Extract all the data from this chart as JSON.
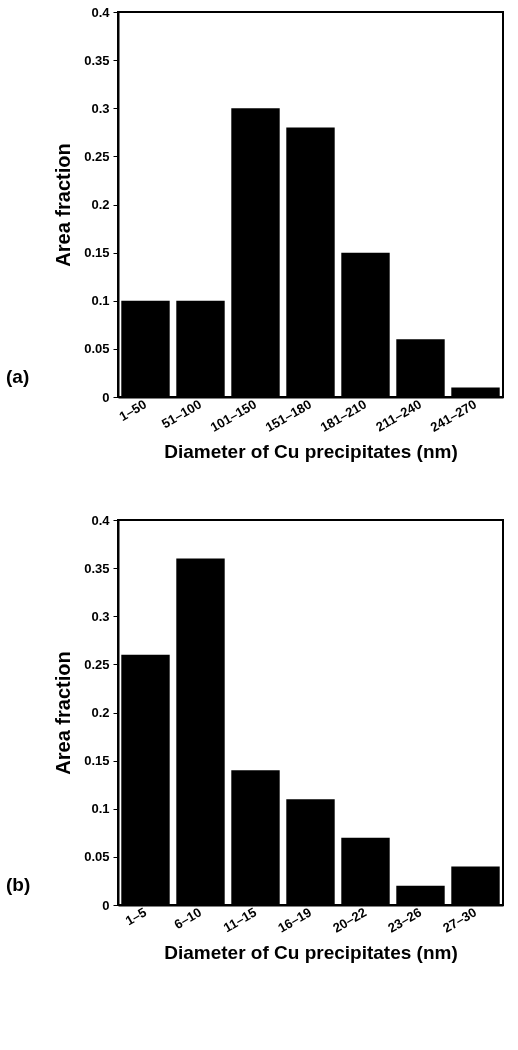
{
  "chart_data": [
    {
      "type": "bar",
      "xlabel": "Diameter of Cu precipitates (nm)",
      "ylabel": "Area fraction",
      "annotations": [
        "(a)"
      ],
      "categories": [
        "1–50",
        "51–100",
        "101–150",
        "151–180",
        "181–210",
        "211–240",
        "241–270"
      ],
      "values": [
        0.1,
        0.1,
        0.3,
        0.28,
        0.15,
        0.06,
        0.01
      ],
      "color": "#000000",
      "ylim": [
        0,
        0.4
      ],
      "yticks": [
        0,
        0.05,
        0.1,
        0.15,
        0.2,
        0.25,
        0.3,
        0.35,
        0.4
      ],
      "grid": false
    },
    {
      "type": "bar",
      "xlabel": "Diameter of Cu precipitates (nm)",
      "ylabel": "Area fraction",
      "annotations": [
        "(b)"
      ],
      "categories": [
        "1–5",
        "6–10",
        "11–15",
        "16–19",
        "20–22",
        "23–26",
        "27–30"
      ],
      "values": [
        0.26,
        0.36,
        0.14,
        0.11,
        0.07,
        0.02,
        0.04
      ],
      "color": "#000000",
      "ylim": [
        0,
        0.4
      ],
      "yticks": [
        0,
        0.05,
        0.1,
        0.15,
        0.2,
        0.25,
        0.3,
        0.35,
        0.4
      ],
      "grid": false
    }
  ]
}
